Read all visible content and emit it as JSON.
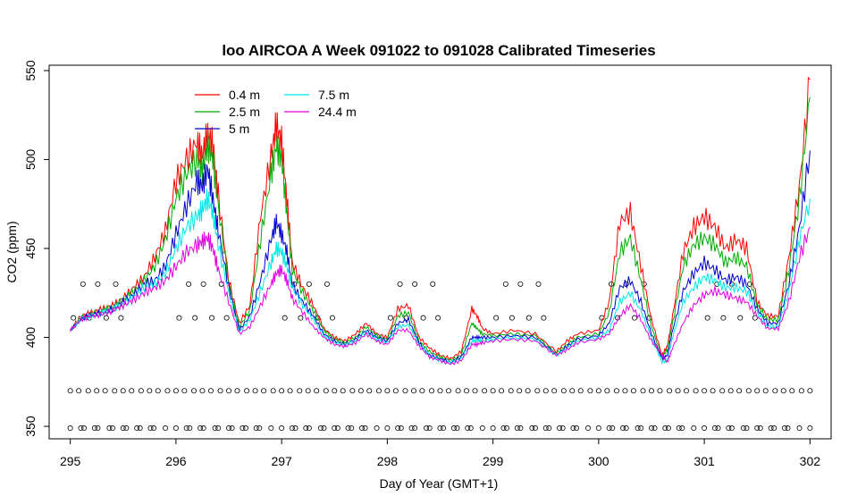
{
  "chart_data": {
    "type": "line",
    "title": "loo AIRCOA A  Week 091022 to 091028  Calibrated Timeseries",
    "xlabel": "Day of Year (GMT+1)",
    "ylabel": "CO2 (ppm)",
    "xlim": [
      294.8,
      302.2
    ],
    "ylim": [
      343,
      553
    ],
    "x_ticks": [
      295,
      296,
      297,
      298,
      299,
      300,
      301,
      302
    ],
    "y_ticks": [
      350,
      400,
      450,
      500,
      550
    ],
    "grid": false,
    "legend": {
      "placement": "top-left",
      "entries": [
        {
          "label": "0.4 m",
          "color": "#ff0000"
        },
        {
          "label": "2.5 m",
          "color": "#00aa00"
        },
        {
          "label": "5 m",
          "color": "#0000cc"
        },
        {
          "label": "7.5 m",
          "color": "#00e5e5"
        },
        {
          "label": "24.4 m",
          "color": "#e000e0"
        }
      ]
    },
    "series": [
      {
        "name": "0.4 m",
        "color": "#ff0000",
        "x": [
          295.0,
          295.1,
          295.2,
          295.3,
          295.4,
          295.5,
          295.6,
          295.7,
          295.8,
          295.9,
          296.0,
          296.1,
          296.2,
          296.25,
          296.3,
          296.35,
          296.4,
          296.5,
          296.6,
          296.7,
          296.8,
          296.9,
          296.95,
          297.0,
          297.05,
          297.1,
          297.2,
          297.3,
          297.4,
          297.5,
          297.6,
          297.7,
          297.8,
          297.9,
          298.0,
          298.1,
          298.2,
          298.3,
          298.4,
          298.5,
          298.6,
          298.7,
          298.8,
          298.85,
          298.9,
          299.0,
          299.2,
          299.4,
          299.6,
          299.7,
          299.8,
          300.0,
          300.1,
          300.2,
          300.3,
          300.4,
          300.5,
          300.6,
          300.65,
          300.7,
          300.8,
          300.9,
          301.0,
          301.1,
          301.2,
          301.3,
          301.4,
          301.5,
          301.6,
          301.7,
          301.8,
          301.9,
          302.0
        ],
        "y": [
          404,
          412,
          414,
          416,
          418,
          422,
          428,
          434,
          445,
          460,
          488,
          500,
          510,
          502,
          515,
          508,
          480,
          432,
          408,
          418,
          468,
          502,
          520,
          510,
          478,
          442,
          428,
          418,
          405,
          400,
          398,
          402,
          408,
          402,
          400,
          416,
          418,
          400,
          394,
          390,
          388,
          392,
          416,
          412,
          405,
          402,
          404,
          402,
          392,
          398,
          402,
          404,
          420,
          465,
          470,
          440,
          410,
          390,
          395,
          412,
          448,
          462,
          468,
          462,
          450,
          455,
          450,
          420,
          412,
          412,
          445,
          485,
          545
        ]
      },
      {
        "name": "2.5 m",
        "color": "#00aa00",
        "x": [
          295.0,
          295.1,
          295.2,
          295.3,
          295.4,
          295.5,
          295.6,
          295.7,
          295.8,
          295.9,
          296.0,
          296.1,
          296.2,
          296.25,
          296.3,
          296.35,
          296.4,
          296.5,
          296.6,
          296.7,
          296.8,
          296.9,
          296.95,
          297.0,
          297.05,
          297.1,
          297.2,
          297.3,
          297.4,
          297.5,
          297.6,
          297.7,
          297.8,
          297.9,
          298.0,
          298.1,
          298.2,
          298.3,
          298.4,
          298.5,
          298.6,
          298.7,
          298.8,
          298.85,
          298.9,
          299.0,
          299.2,
          299.4,
          299.6,
          299.7,
          299.8,
          300.0,
          300.1,
          300.2,
          300.3,
          300.4,
          300.5,
          300.6,
          300.65,
          300.7,
          300.8,
          300.9,
          301.0,
          301.1,
          301.2,
          301.3,
          301.4,
          301.5,
          301.6,
          301.7,
          301.8,
          301.9,
          302.0
        ],
        "y": [
          404,
          411,
          413,
          415,
          417,
          421,
          426,
          432,
          440,
          455,
          478,
          492,
          500,
          494,
          508,
          500,
          474,
          430,
          406,
          415,
          455,
          492,
          508,
          500,
          470,
          438,
          425,
          415,
          404,
          399,
          397,
          400,
          406,
          401,
          399,
          412,
          414,
          398,
          392,
          389,
          387,
          390,
          408,
          405,
          402,
          401,
          402,
          401,
          391,
          396,
          400,
          402,
          414,
          448,
          456,
          432,
          406,
          389,
          393,
          408,
          440,
          452,
          456,
          452,
          442,
          445,
          440,
          418,
          410,
          410,
          438,
          478,
          535
        ]
      },
      {
        "name": "5 m",
        "color": "#0000cc",
        "x": [
          295.0,
          295.1,
          295.2,
          295.3,
          295.4,
          295.5,
          295.6,
          295.7,
          295.8,
          295.9,
          296.0,
          296.1,
          296.2,
          296.25,
          296.3,
          296.35,
          296.4,
          296.5,
          296.6,
          296.7,
          296.8,
          296.9,
          296.95,
          297.0,
          297.05,
          297.1,
          297.2,
          297.3,
          297.4,
          297.5,
          297.6,
          297.7,
          297.8,
          297.9,
          298.0,
          298.1,
          298.2,
          298.3,
          298.4,
          298.5,
          298.6,
          298.7,
          298.8,
          298.85,
          298.9,
          299.0,
          299.2,
          299.4,
          299.6,
          299.7,
          299.8,
          300.0,
          300.1,
          300.2,
          300.3,
          300.4,
          300.5,
          300.6,
          300.65,
          300.7,
          300.8,
          300.9,
          301.0,
          301.1,
          301.2,
          301.3,
          301.4,
          301.5,
          301.6,
          301.7,
          301.8,
          301.9,
          302.0
        ],
        "y": [
          404,
          410,
          413,
          414,
          416,
          420,
          424,
          430,
          432,
          440,
          458,
          474,
          488,
          485,
          495,
          478,
          460,
          428,
          404,
          412,
          432,
          455,
          465,
          458,
          448,
          430,
          420,
          412,
          402,
          398,
          396,
          399,
          404,
          400,
          398,
          408,
          410,
          397,
          390,
          388,
          386,
          389,
          400,
          400,
          400,
          400,
          401,
          400,
          390,
          395,
          399,
          401,
          408,
          428,
          432,
          420,
          402,
          388,
          390,
          404,
          426,
          436,
          442,
          438,
          432,
          434,
          430,
          416,
          408,
          408,
          430,
          462,
          505
        ]
      },
      {
        "name": "7.5 m",
        "color": "#00e5e5",
        "x": [
          295.0,
          295.1,
          295.2,
          295.3,
          295.4,
          295.5,
          295.6,
          295.7,
          295.8,
          295.9,
          296.0,
          296.1,
          296.2,
          296.25,
          296.3,
          296.35,
          296.4,
          296.5,
          296.6,
          296.7,
          296.8,
          296.9,
          296.95,
          297.0,
          297.05,
          297.1,
          297.2,
          297.3,
          297.4,
          297.5,
          297.6,
          297.7,
          297.8,
          297.9,
          298.0,
          298.1,
          298.2,
          298.3,
          298.4,
          298.5,
          298.6,
          298.7,
          298.8,
          298.85,
          298.9,
          299.0,
          299.2,
          299.4,
          299.6,
          299.7,
          299.8,
          300.0,
          300.1,
          300.2,
          300.3,
          300.4,
          300.5,
          300.6,
          300.65,
          300.7,
          300.8,
          300.9,
          301.0,
          301.1,
          301.2,
          301.3,
          301.4,
          301.5,
          301.6,
          301.7,
          301.8,
          301.9,
          302.0
        ],
        "y": [
          404,
          410,
          412,
          414,
          416,
          419,
          423,
          428,
          430,
          436,
          450,
          462,
          468,
          472,
          478,
          470,
          452,
          425,
          403,
          410,
          426,
          442,
          450,
          448,
          440,
          428,
          418,
          410,
          401,
          397,
          396,
          398,
          403,
          399,
          397,
          406,
          407,
          396,
          390,
          387,
          386,
          388,
          398,
          398,
          398,
          399,
          400,
          399,
          390,
          394,
          398,
          400,
          404,
          420,
          425,
          415,
          400,
          386,
          387,
          400,
          420,
          428,
          434,
          432,
          428,
          428,
          426,
          414,
          406,
          406,
          426,
          455,
          478
        ]
      },
      {
        "name": "24.4 m",
        "color": "#e000e0",
        "x": [
          295.0,
          295.1,
          295.2,
          295.3,
          295.4,
          295.5,
          295.6,
          295.7,
          295.8,
          295.9,
          296.0,
          296.1,
          296.2,
          296.25,
          296.3,
          296.35,
          296.4,
          296.5,
          296.6,
          296.7,
          296.8,
          296.9,
          296.95,
          297.0,
          297.05,
          297.1,
          297.2,
          297.3,
          297.4,
          297.5,
          297.6,
          297.7,
          297.8,
          297.9,
          298.0,
          298.1,
          298.2,
          298.3,
          298.4,
          298.5,
          298.6,
          298.7,
          298.8,
          298.85,
          298.9,
          299.0,
          299.2,
          299.4,
          299.6,
          299.7,
          299.8,
          300.0,
          300.1,
          300.2,
          300.3,
          300.4,
          300.5,
          300.6,
          300.65,
          300.7,
          300.8,
          300.9,
          301.0,
          301.1,
          301.2,
          301.3,
          301.4,
          301.5,
          301.6,
          301.7,
          301.8,
          301.9,
          302.0
        ],
        "y": [
          404,
          410,
          412,
          413,
          415,
          418,
          421,
          425,
          428,
          432,
          440,
          448,
          452,
          454,
          456,
          450,
          438,
          420,
          402,
          406,
          418,
          430,
          436,
          438,
          432,
          422,
          414,
          406,
          400,
          396,
          395,
          397,
          402,
          398,
          396,
          404,
          404,
          395,
          389,
          387,
          385,
          387,
          396,
          396,
          397,
          398,
          399,
          398,
          390,
          393,
          397,
          399,
          402,
          412,
          418,
          410,
          398,
          390,
          386,
          394,
          408,
          418,
          424,
          426,
          424,
          422,
          420,
          412,
          405,
          405,
          420,
          445,
          462
        ]
      }
    ],
    "marker_rows": [
      {
        "y": 430,
        "x_offsets": [
          0.12,
          0.26,
          0.43
        ]
      },
      {
        "y": 411,
        "x_offsets": [
          0.03,
          0.18,
          0.34,
          0.48
        ]
      },
      {
        "y": 370,
        "x_offsets": [
          0.0,
          0.08,
          0.17,
          0.25,
          0.33,
          0.42,
          0.5,
          0.58,
          0.67,
          0.75,
          0.83,
          0.92
        ]
      },
      {
        "y": 349,
        "x_offsets": [
          0.0,
          0.1,
          0.13,
          0.23,
          0.26,
          0.37,
          0.4,
          0.5,
          0.53,
          0.63,
          0.66,
          0.76,
          0.79,
          0.9
        ]
      }
    ]
  }
}
